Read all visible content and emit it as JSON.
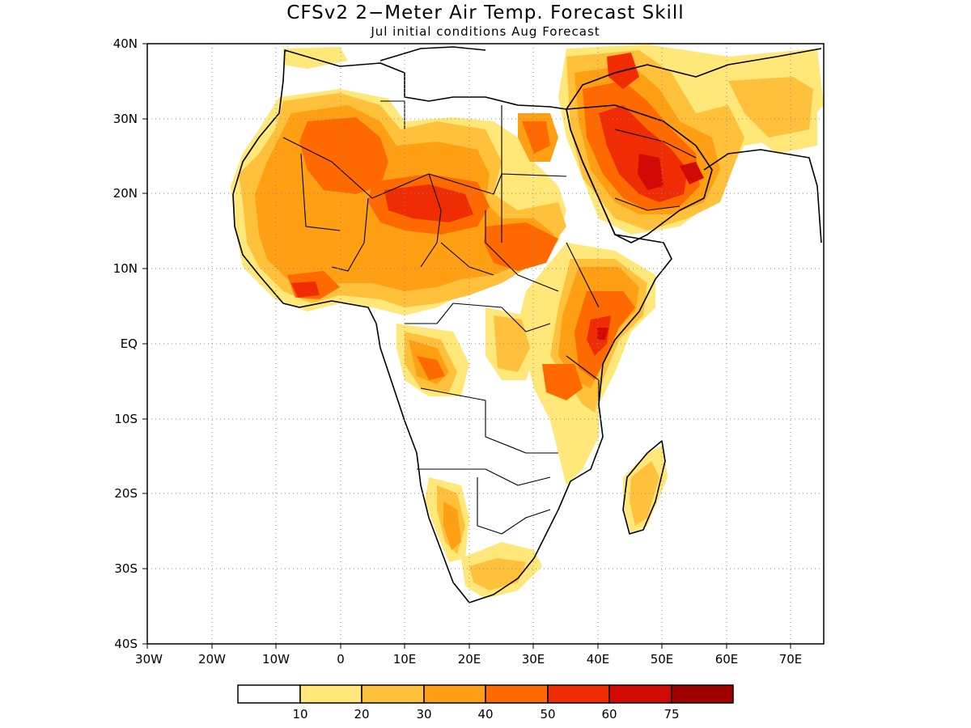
{
  "title": "CFSv2 2−Meter Air Temp. Forecast Skill",
  "subtitle": "Jul initial conditions   Aug Forecast",
  "lat_ticks": [
    "40N",
    "30N",
    "20N",
    "10N",
    "EQ",
    "10S",
    "20S",
    "30S",
    "40S"
  ],
  "lon_ticks": [
    "30W",
    "20W",
    "10W",
    "0",
    "10E",
    "20E",
    "30E",
    "40E",
    "50E",
    "60E",
    "70E"
  ],
  "colorbar": {
    "labels": [
      "10",
      "20",
      "30",
      "40",
      "50",
      "60",
      "75"
    ],
    "colors": [
      "#ffffff",
      "#ffe779",
      "#ffc13c",
      "#ff9f14",
      "#ff6a00",
      "#f02c04",
      "#d20a05",
      "#a00000"
    ]
  },
  "colors": {
    "c1": "#ffe779",
    "c2": "#ffc13c",
    "c3": "#ff9f14",
    "c4": "#ff6a00",
    "c5": "#f02c04",
    "c6": "#d20a05"
  }
}
